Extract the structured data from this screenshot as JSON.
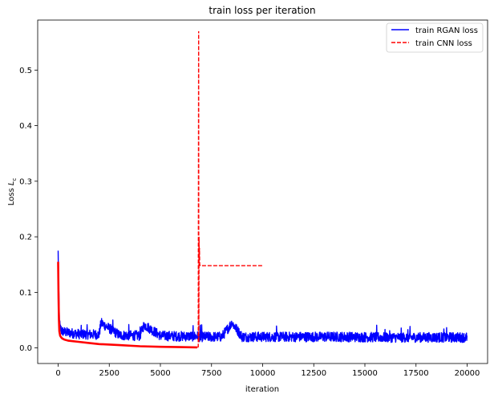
{
  "chart_data": {
    "type": "line",
    "title": "train loss per iteration",
    "xlabel": "iteration",
    "ylabel": "Loss L_c",
    "ylabel_main": "Loss ",
    "ylabel_italic": "L",
    "ylabel_sub": "c",
    "xlim": [
      -1000,
      21000
    ],
    "ylim": [
      -0.028,
      0.59
    ],
    "xticks": [
      0,
      2500,
      5000,
      7500,
      10000,
      12500,
      15000,
      17500,
      20000
    ],
    "yticks": [
      0.0,
      0.1,
      0.2,
      0.3,
      0.4,
      0.5
    ],
    "ytick_labels": [
      "0.0",
      "0.1",
      "0.2",
      "0.3",
      "0.4",
      "0.5"
    ],
    "grid": false,
    "legend_position": "top-right",
    "series": [
      {
        "name": "train RGAN loss",
        "color": "#0000ff",
        "style": "solid",
        "description_points": {
          "x": [
            0,
            20,
            40,
            60,
            100,
            200,
            400,
            600,
            1000,
            2000,
            2100,
            3000,
            4000,
            4200,
            5000,
            6000,
            6800,
            7000,
            8000,
            8500,
            9000,
            10000,
            12000,
            14000,
            16000,
            18000,
            20000
          ],
          "y": [
            0.175,
            0.12,
            0.08,
            0.05,
            0.035,
            0.03,
            0.028,
            0.027,
            0.025,
            0.024,
            0.045,
            0.023,
            0.022,
            0.042,
            0.022,
            0.021,
            0.021,
            0.02,
            0.02,
            0.045,
            0.02,
            0.02,
            0.02,
            0.02,
            0.019,
            0.019,
            0.019
          ]
        },
        "noise_band": [
          0.008,
          0.04
        ]
      },
      {
        "name": "train CNN loss",
        "color": "#ff0000",
        "style": "dashed",
        "x": [
          0,
          20,
          40,
          60,
          100,
          150,
          200,
          300,
          500,
          1000,
          1500,
          2000,
          3000,
          4000,
          5000,
          6000,
          6800,
          6850,
          6870,
          6880,
          6890,
          6900,
          6910,
          6920,
          6950,
          7000,
          10000
        ],
        "y": [
          0.155,
          0.09,
          0.05,
          0.03,
          0.022,
          0.019,
          0.017,
          0.015,
          0.013,
          0.011,
          0.009,
          0.007,
          0.005,
          0.003,
          0.002,
          0.0015,
          0.001,
          0.002,
          0.57,
          0.01,
          0.2,
          0.16,
          0.18,
          0.15,
          0.148,
          0.148,
          0.148
        ]
      }
    ]
  }
}
